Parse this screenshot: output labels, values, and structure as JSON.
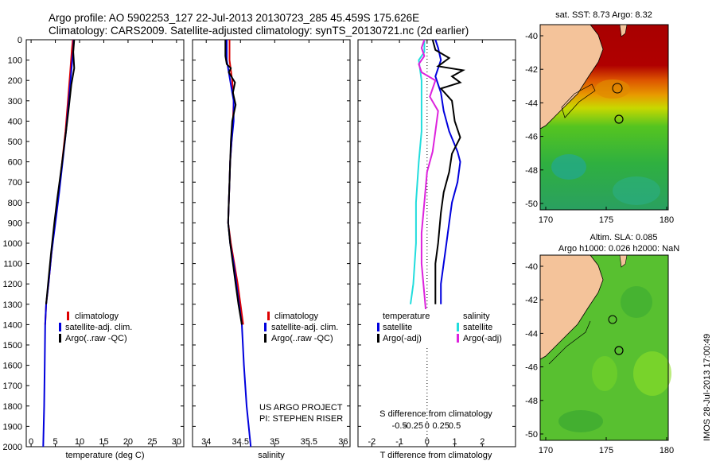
{
  "title_line1": "Argo profile: AO 5902253_127 22-Jul-2013 20130723_285 45.459S 175.626E",
  "title_line2": "Climatology: CARS2009. Satellite-adjusted climatology: synTS_20130721.nc (2d earlier)",
  "side_stamp": "IMOS 28-Jul-2013 17:00:49",
  "project_line1": "US ARGO PROJECT",
  "project_line2": "PI: STEPHEN RISER",
  "depth_ticks": [
    "0",
    "100",
    "200",
    "300",
    "400",
    "500",
    "600",
    "700",
    "800",
    "900",
    "1000",
    "1100",
    "1200",
    "1300",
    "1400",
    "1500",
    "1600",
    "1700",
    "1800",
    "1900",
    "2000"
  ],
  "colors": {
    "clim": "#dd0000",
    "sat": "#0000dd",
    "argo": "#000000",
    "sal_sat": "#22dddd",
    "sal_argo": "#dd22dd"
  },
  "legend_temp": [
    "climatology",
    "satellite-adj. clim.",
    "Argo(..raw -QC)"
  ],
  "legend_sal": [
    "climatology",
    "satellite-adj. clim.",
    "Argo(..raw -QC)"
  ],
  "legend_diff": {
    "temp_header": "temperature",
    "sal_header": "salinity",
    "temp_items": [
      "satellite",
      "Argo(-adj)"
    ],
    "sal_items": [
      "satellite",
      "Argo(-adj)"
    ]
  },
  "chart_data": [
    {
      "type": "line",
      "xlabel": "temperature (deg C)",
      "xlim": [
        -1,
        31.5
      ],
      "ylim": [
        2000,
        0
      ],
      "xticks": [
        0,
        5,
        10,
        15,
        20,
        25,
        30
      ],
      "series": [
        {
          "name": "climatology",
          "color": "#dd0000",
          "points": [
            [
              8.6,
              0
            ],
            [
              8.4,
              50
            ],
            [
              8.1,
              150
            ],
            [
              7.6,
              300
            ],
            [
              7.1,
              450
            ],
            [
              6.4,
              600
            ],
            [
              5.7,
              750
            ],
            [
              4.9,
              900
            ],
            [
              4.2,
              1050
            ],
            [
              3.6,
              1200
            ],
            [
              3.1,
              1300
            ],
            [
              2.9,
              1400
            ]
          ]
        },
        {
          "name": "satellite-adj. clim.",
          "color": "#0000dd",
          "points": [
            [
              8.8,
              0
            ],
            [
              8.7,
              50
            ],
            [
              8.3,
              150
            ],
            [
              7.8,
              300
            ],
            [
              7.2,
              450
            ],
            [
              6.5,
              600
            ],
            [
              5.8,
              750
            ],
            [
              5.0,
              900
            ],
            [
              4.2,
              1050
            ],
            [
              3.6,
              1200
            ],
            [
              3.1,
              1300
            ],
            [
              2.9,
              1400
            ],
            [
              2.8,
              1600
            ],
            [
              2.7,
              1800
            ],
            [
              2.5,
              2000
            ]
          ]
        },
        {
          "name": "Argo(..raw -QC)",
          "color": "#000000",
          "points": [
            [
              8.9,
              0
            ],
            [
              8.7,
              60
            ],
            [
              8.9,
              140
            ],
            [
              8.3,
              220
            ],
            [
              7.8,
              330
            ],
            [
              7.2,
              450
            ],
            [
              6.3,
              620
            ],
            [
              5.4,
              780
            ],
            [
              4.8,
              900
            ],
            [
              4.1,
              1050
            ],
            [
              3.5,
              1200
            ],
            [
              3.1,
              1300
            ]
          ]
        }
      ]
    },
    {
      "type": "line",
      "xlabel": "salinity",
      "xlim": [
        33.8,
        36.1
      ],
      "ylim": [
        2000,
        0
      ],
      "xticks": [
        34,
        34.5,
        35,
        35.5,
        36
      ],
      "series": [
        {
          "name": "climatology",
          "color": "#dd0000",
          "points": [
            [
              34.34,
              0
            ],
            [
              34.34,
              100
            ],
            [
              34.38,
              200
            ],
            [
              34.4,
              300
            ],
            [
              34.39,
              400
            ],
            [
              34.37,
              500
            ],
            [
              34.35,
              600
            ],
            [
              34.34,
              700
            ],
            [
              34.33,
              800
            ],
            [
              34.32,
              900
            ],
            [
              34.36,
              1000
            ],
            [
              34.41,
              1100
            ],
            [
              34.46,
              1200
            ],
            [
              34.5,
              1300
            ],
            [
              34.54,
              1400
            ]
          ]
        },
        {
          "name": "satellite-adj. clim.",
          "color": "#0000dd",
          "points": [
            [
              34.3,
              0
            ],
            [
              34.3,
              100
            ],
            [
              34.35,
              200
            ],
            [
              34.4,
              300
            ],
            [
              34.4,
              400
            ],
            [
              34.37,
              500
            ],
            [
              34.35,
              600
            ],
            [
              34.34,
              700
            ],
            [
              34.33,
              800
            ],
            [
              34.32,
              900
            ],
            [
              34.35,
              1000
            ],
            [
              34.4,
              1100
            ],
            [
              34.44,
              1200
            ],
            [
              34.48,
              1300
            ],
            [
              34.52,
              1400
            ],
            [
              34.55,
              1600
            ],
            [
              34.59,
              1800
            ],
            [
              34.65,
              2000
            ]
          ]
        },
        {
          "name": "Argo(..raw -QC)",
          "color": "#000000",
          "points": [
            [
              34.28,
              0
            ],
            [
              34.28,
              80
            ],
            [
              34.3,
              120
            ],
            [
              34.36,
              140
            ],
            [
              34.33,
              160
            ],
            [
              34.42,
              210
            ],
            [
              34.39,
              260
            ],
            [
              34.43,
              320
            ],
            [
              34.38,
              400
            ],
            [
              34.36,
              500
            ],
            [
              34.35,
              600
            ],
            [
              34.34,
              700
            ],
            [
              34.33,
              800
            ],
            [
              34.32,
              900
            ],
            [
              34.35,
              1000
            ],
            [
              34.39,
              1100
            ],
            [
              34.43,
              1200
            ],
            [
              34.47,
              1300
            ],
            [
              34.52,
              1400
            ]
          ]
        }
      ]
    },
    {
      "type": "line",
      "xlabel": "T difference from climatology",
      "top_label": "S difference from climatology",
      "xlim": [
        -2.5,
        3.2
      ],
      "ylim": [
        2000,
        0
      ],
      "xticks": [
        -2,
        -1,
        0,
        1,
        2
      ],
      "top_ticks": [
        "-0.5",
        "-0.25",
        "0",
        "0.25",
        "0.5"
      ],
      "series": [
        {
          "name": "temperature satellite",
          "color": "#0000dd",
          "points": [
            [
              0.3,
              0
            ],
            [
              0.4,
              40
            ],
            [
              0.5,
              100
            ],
            [
              0.3,
              180
            ],
            [
              0.5,
              260
            ],
            [
              0.6,
              350
            ],
            [
              0.8,
              450
            ],
            [
              1.1,
              550
            ],
            [
              1.2,
              600
            ],
            [
              1.1,
              700
            ],
            [
              0.9,
              800
            ],
            [
              0.8,
              900
            ],
            [
              0.7,
              1000
            ],
            [
              0.6,
              1100
            ],
            [
              0.5,
              1200
            ],
            [
              0.5,
              1300
            ]
          ]
        },
        {
          "name": "temperature Argo(-adj)",
          "color": "#000000",
          "points": [
            [
              0.2,
              0
            ],
            [
              0.3,
              50
            ],
            [
              0.8,
              90
            ],
            [
              0.4,
              130
            ],
            [
              1.3,
              150
            ],
            [
              0.9,
              180
            ],
            [
              1.2,
              210
            ],
            [
              0.5,
              240
            ],
            [
              0.9,
              300
            ],
            [
              1.0,
              400
            ],
            [
              1.2,
              480
            ],
            [
              0.9,
              560
            ],
            [
              0.8,
              650
            ],
            [
              0.6,
              750
            ],
            [
              0.5,
              850
            ],
            [
              0.4,
              1000
            ],
            [
              0.3,
              1100
            ],
            [
              0.3,
              1200
            ],
            [
              0.3,
              1300
            ]
          ]
        },
        {
          "name": "salinity satellite",
          "color": "#22dddd",
          "points": [
            [
              -0.1,
              0
            ],
            [
              -0.1,
              60
            ],
            [
              -0.3,
              100
            ],
            [
              -0.2,
              200
            ],
            [
              -0.2,
              300
            ],
            [
              -0.2,
              450
            ],
            [
              -0.3,
              600
            ],
            [
              -0.4,
              800
            ],
            [
              -0.4,
              1000
            ],
            [
              -0.5,
              1200
            ],
            [
              -0.6,
              1300
            ]
          ]
        },
        {
          "name": "salinity Argo(-adj)",
          "color": "#dd22dd",
          "points": [
            [
              -0.1,
              0
            ],
            [
              -0.2,
              40
            ],
            [
              -0.1,
              80
            ],
            [
              -0.3,
              120
            ],
            [
              -0.2,
              160
            ],
            [
              0.3,
              200
            ],
            [
              0.1,
              280
            ],
            [
              0.4,
              350
            ],
            [
              0.3,
              450
            ],
            [
              0.2,
              550
            ],
            [
              0.0,
              650
            ],
            [
              -0.1,
              800
            ],
            [
              -0.2,
              950
            ],
            [
              -0.2,
              1100
            ],
            [
              -0.1,
              1250
            ],
            [
              0.0,
              1400
            ]
          ]
        }
      ]
    }
  ],
  "map_top": {
    "title": "sat. SST: 8.73  Argo: 8.32",
    "xticks": [
      "170",
      "175",
      "180"
    ],
    "yticks": [
      "-40",
      "-42",
      "-44",
      "-46",
      "-48",
      "-50"
    ]
  },
  "map_bottom": {
    "title_line1": "Altim. SLA: 0.085",
    "title_line2": "Argo h1000: 0.026 h2000: NaN",
    "xticks": [
      "170",
      "175",
      "180"
    ],
    "yticks": [
      "-40",
      "-42",
      "-44",
      "-46",
      "-48",
      "-50"
    ]
  }
}
